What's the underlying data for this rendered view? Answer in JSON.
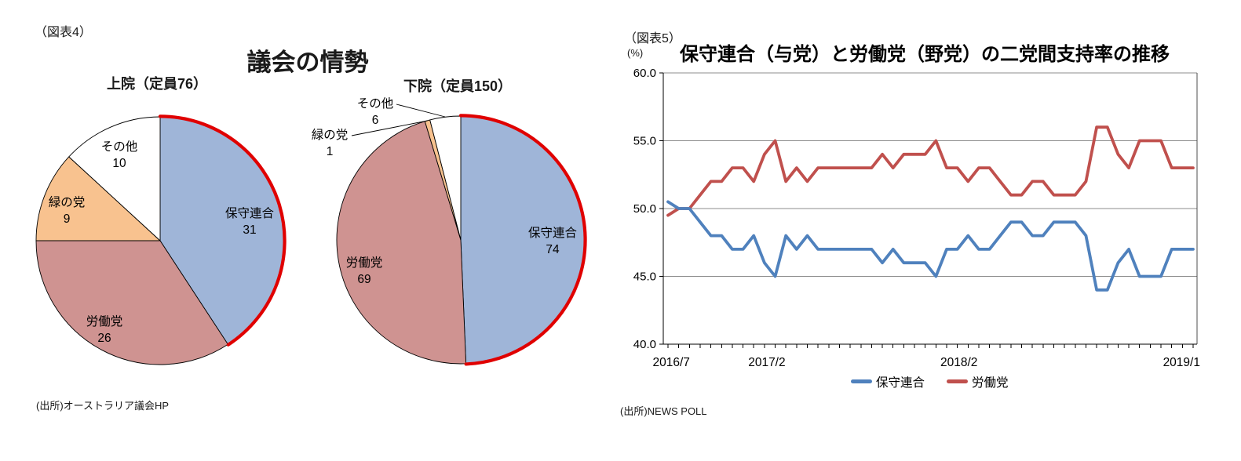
{
  "figure4": {
    "tag": "（図表4）",
    "title": "議会の情勢",
    "source": "(出所)オーストラリア議会HP"
  },
  "figure5": {
    "tag": "（図表5）",
    "source": "(出所)NEWS POLL"
  },
  "chart_data": [
    {
      "type": "pie",
      "title": "上院（定員76）",
      "total": 76,
      "labels": [
        "保守連合",
        "労働党",
        "緑の党",
        "その他"
      ],
      "ids": [
        "coalition",
        "labor",
        "greens",
        "others"
      ],
      "values": [
        31,
        26,
        9,
        10
      ],
      "colors": [
        "#9FB5D8",
        "#CF9391",
        "#F8C28F",
        "#FFFFFF"
      ],
      "outline_color": "#000000",
      "highlight": {
        "slice": 0,
        "color": "#E00000"
      },
      "label_layout": [
        "inside",
        "inside",
        "inside",
        "inside"
      ]
    },
    {
      "type": "pie",
      "title": "下院（定員150）",
      "total": 150,
      "labels": [
        "保守連合",
        "労働党",
        "緑の党",
        "その他"
      ],
      "ids": [
        "coalition",
        "labor",
        "greens",
        "others"
      ],
      "values": [
        74,
        69,
        1,
        6
      ],
      "colors": [
        "#9FB5D8",
        "#CF9391",
        "#F8C28F",
        "#FFFFFF"
      ],
      "outline_color": "#000000",
      "highlight": {
        "slice": 0,
        "color": "#E00000"
      },
      "label_layout": [
        "inside",
        "inside",
        "outside",
        "outside"
      ]
    },
    {
      "type": "line",
      "title": "保守連合（与党）と労働党（野党）の二党間支持率の推移",
      "ylabel": "(%)",
      "ylim": [
        40.0,
        60.0
      ],
      "yticks": [
        40.0,
        45.0,
        50.0,
        55.0,
        60.0
      ],
      "xticks": [
        {
          "label": "2016/7",
          "pos": 0.015
        },
        {
          "label": "2017/2",
          "pos": 0.194
        },
        {
          "label": "2018/2",
          "pos": 0.554
        },
        {
          "label": "2019/1",
          "pos": 0.971
        }
      ],
      "grid": true,
      "legend_position": "bottom",
      "series": [
        {
          "name": "保守連合",
          "id": "coalition",
          "color": "#4F81BD",
          "values": [
            50.5,
            50,
            50,
            49,
            48,
            48,
            47,
            47,
            48,
            46,
            45,
            48,
            47,
            48,
            47,
            47,
            47,
            47,
            47,
            47,
            46,
            47,
            46,
            46,
            46,
            45,
            47,
            47,
            48,
            47,
            47,
            48,
            49,
            49,
            48,
            48,
            49,
            49,
            49,
            48,
            44,
            44,
            46,
            47,
            45,
            45,
            45,
            47,
            47,
            47
          ]
        },
        {
          "name": "労働党",
          "id": "labor",
          "color": "#C0504D",
          "values": [
            49.5,
            50,
            50,
            51,
            52,
            52,
            53,
            53,
            52,
            54,
            55,
            52,
            53,
            52,
            53,
            53,
            53,
            53,
            53,
            53,
            54,
            53,
            54,
            54,
            54,
            55,
            53,
            53,
            52,
            53,
            53,
            52,
            51,
            51,
            52,
            52,
            51,
            51,
            51,
            52,
            56,
            56,
            54,
            53,
            55,
            55,
            55,
            53,
            53,
            53
          ]
        }
      ]
    }
  ]
}
